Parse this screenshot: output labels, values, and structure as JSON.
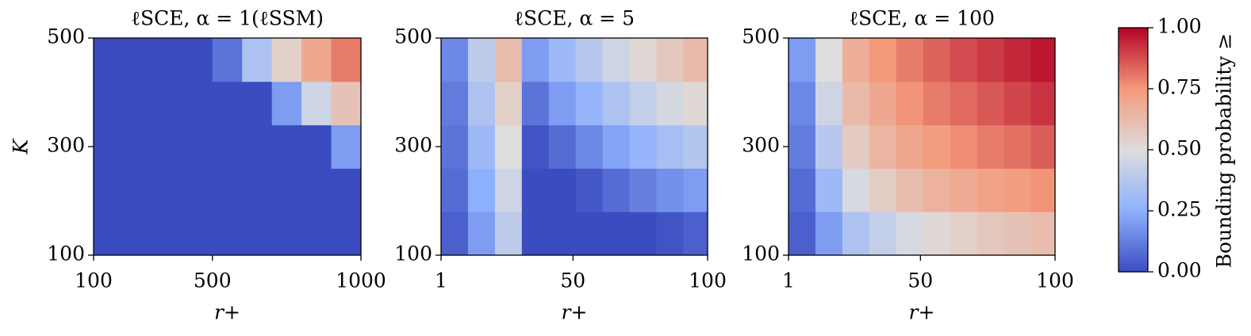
{
  "chart_data": {
    "type": "heatmap",
    "xlabel": "r+",
    "ylabel": "K",
    "colormap": [
      "#3b4cc0",
      "#8db0fe",
      "#dddddd",
      "#f49a7b",
      "#b40426"
    ],
    "panels": [
      {
        "title": "ℓSCE, α = 1(ℓSSM)",
        "xlim": [
          100,
          1000
        ],
        "ylim": [
          100,
          500
        ],
        "xticks": [
          100,
          500,
          1000
        ],
        "yticks": [
          100,
          300,
          500
        ],
        "x": [
          150,
          250,
          350,
          450,
          550,
          650,
          750,
          850,
          950
        ],
        "y": [
          140,
          220,
          300,
          380,
          460
        ],
        "z": [
          [
            0,
            0,
            0,
            0,
            0,
            0,
            0,
            0,
            0
          ],
          [
            0,
            0,
            0,
            0,
            0,
            0,
            0,
            0,
            0
          ],
          [
            0,
            0,
            0,
            0,
            0,
            0,
            0,
            0,
            0.2
          ],
          [
            0,
            0,
            0,
            0,
            0,
            0,
            0.2,
            0.45,
            0.6
          ],
          [
            0,
            0,
            0,
            0,
            0.1,
            0.35,
            0.55,
            0.7,
            0.8
          ]
        ]
      },
      {
        "title": "ℓSCE, α = 5",
        "xlim": [
          1,
          100
        ],
        "ylim": [
          100,
          500
        ],
        "xticks": [
          1,
          50,
          100
        ],
        "yticks": [
          100,
          300,
          500
        ],
        "x": [
          6,
          16,
          26,
          36,
          46,
          56,
          66,
          76,
          86,
          96
        ],
        "y": [
          140,
          220,
          300,
          380,
          460
        ],
        "z": [
          [
            0.05,
            0.2,
            0.4,
            0,
            0,
            0,
            0,
            0,
            0.02,
            0.05
          ],
          [
            0.08,
            0.25,
            0.45,
            0,
            0,
            0.03,
            0.08,
            0.13,
            0.17,
            0.2
          ],
          [
            0.1,
            0.3,
            0.5,
            0.02,
            0.08,
            0.15,
            0.22,
            0.28,
            0.33,
            0.37
          ],
          [
            0.12,
            0.35,
            0.55,
            0.1,
            0.2,
            0.28,
            0.35,
            0.42,
            0.47,
            0.52
          ],
          [
            0.15,
            0.4,
            0.62,
            0.2,
            0.3,
            0.38,
            0.45,
            0.52,
            0.58,
            0.63
          ]
        ]
      },
      {
        "title": "ℓSCE, α = 100",
        "xlim": [
          1,
          100
        ],
        "ylim": [
          100,
          500
        ],
        "xticks": [
          1,
          50,
          100
        ],
        "yticks": [
          100,
          300,
          500
        ],
        "x": [
          6,
          16,
          26,
          36,
          46,
          56,
          66,
          76,
          86,
          96
        ],
        "y": [
          140,
          220,
          300,
          380,
          460
        ],
        "z": [
          [
            0.05,
            0.2,
            0.35,
            0.42,
            0.48,
            0.52,
            0.55,
            0.58,
            0.6,
            0.62
          ],
          [
            0.08,
            0.3,
            0.48,
            0.56,
            0.62,
            0.66,
            0.69,
            0.72,
            0.74,
            0.76
          ],
          [
            0.12,
            0.38,
            0.57,
            0.65,
            0.7,
            0.74,
            0.77,
            0.8,
            0.82,
            0.85
          ],
          [
            0.15,
            0.45,
            0.63,
            0.7,
            0.76,
            0.8,
            0.83,
            0.86,
            0.89,
            0.92
          ],
          [
            0.2,
            0.5,
            0.68,
            0.75,
            0.8,
            0.84,
            0.88,
            0.91,
            0.94,
            0.97
          ]
        ]
      }
    ],
    "colorbar": {
      "label": "Bounding probability ≥",
      "lim": [
        0,
        1
      ],
      "ticks": [
        {
          "value": 0,
          "label": "0.00"
        },
        {
          "value": 0.25,
          "label": "0.25"
        },
        {
          "value": 0.5,
          "label": "0.50"
        },
        {
          "value": 0.75,
          "label": "0.75"
        },
        {
          "value": 1,
          "label": "1.00"
        }
      ]
    }
  }
}
